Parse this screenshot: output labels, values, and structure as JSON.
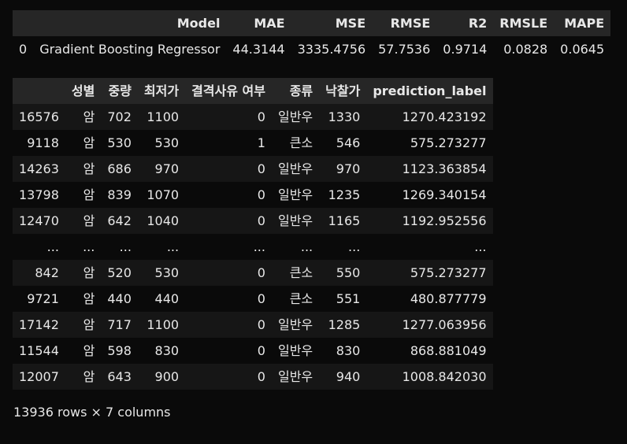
{
  "metrics": {
    "columns": [
      "",
      "Model",
      "MAE",
      "MSE",
      "RMSE",
      "R2",
      "RMSLE",
      "MAPE"
    ],
    "rows": [
      [
        "0",
        "Gradient Boosting Regressor",
        "44.3144",
        "3335.4756",
        "57.7536",
        "0.9714",
        "0.0828",
        "0.0645"
      ]
    ]
  },
  "predictions": {
    "columns": [
      "",
      "성별",
      "중량",
      "최저가",
      "결격사유 여부",
      "종류",
      "낙찰가",
      "prediction_label"
    ],
    "rows": [
      [
        "16576",
        "암",
        "702",
        "1100",
        "0",
        "일반우",
        "1330",
        "1270.423192"
      ],
      [
        "9118",
        "암",
        "530",
        "530",
        "1",
        "큰소",
        "546",
        "575.273277"
      ],
      [
        "14263",
        "암",
        "686",
        "970",
        "0",
        "일반우",
        "970",
        "1123.363854"
      ],
      [
        "13798",
        "암",
        "839",
        "1070",
        "0",
        "일반우",
        "1235",
        "1269.340154"
      ],
      [
        "12470",
        "암",
        "642",
        "1040",
        "0",
        "일반우",
        "1165",
        "1192.952556"
      ],
      [
        "...",
        "...",
        "...",
        "...",
        "...",
        "...",
        "...",
        "..."
      ],
      [
        "842",
        "암",
        "520",
        "530",
        "0",
        "큰소",
        "550",
        "575.273277"
      ],
      [
        "9721",
        "암",
        "440",
        "440",
        "0",
        "큰소",
        "551",
        "480.877779"
      ],
      [
        "17142",
        "암",
        "717",
        "1100",
        "0",
        "일반우",
        "1285",
        "1277.063956"
      ],
      [
        "11544",
        "암",
        "598",
        "830",
        "0",
        "일반우",
        "830",
        "868.881049"
      ],
      [
        "12007",
        "암",
        "643",
        "900",
        "0",
        "일반우",
        "940",
        "1008.842030"
      ]
    ]
  },
  "footer": "13936 rows × 7 columns"
}
